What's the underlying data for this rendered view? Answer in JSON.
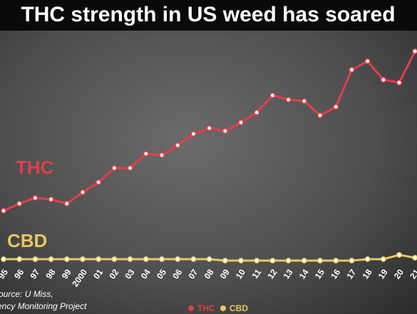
{
  "chart_data": {
    "type": "line",
    "title": "THC strength in US weed has soared",
    "categories": [
      "95",
      "96",
      "97",
      "98",
      "99",
      "2000",
      "01",
      "02",
      "03",
      "04",
      "05",
      "06",
      "07",
      "08",
      "09",
      "10",
      "11",
      "12",
      "13",
      "14",
      "15",
      "16",
      "17",
      "18",
      "19",
      "20",
      "21"
    ],
    "series": [
      {
        "name": "THC",
        "color": "#e0404b",
        "values": [
          3.7,
          4.2,
          4.6,
          4.5,
          4.2,
          5.0,
          5.7,
          6.7,
          6.7,
          7.7,
          7.6,
          8.3,
          9.1,
          9.5,
          9.3,
          9.9,
          10.6,
          11.8,
          11.5,
          11.4,
          10.4,
          11.0,
          13.6,
          14.2,
          12.9,
          12.7,
          14.9
        ]
      },
      {
        "name": "CBD",
        "color": "#e9c663",
        "values": [
          0.3,
          0.3,
          0.3,
          0.3,
          0.3,
          0.3,
          0.3,
          0.3,
          0.3,
          0.3,
          0.3,
          0.3,
          0.3,
          0.3,
          0.2,
          0.2,
          0.2,
          0.2,
          0.2,
          0.2,
          0.2,
          0.2,
          0.2,
          0.3,
          0.3,
          0.6,
          0.4
        ]
      }
    ],
    "ylim": [
      0,
      16
    ],
    "source": [
      "Source: U Miss,",
      "Potency Monitoring Project"
    ]
  }
}
